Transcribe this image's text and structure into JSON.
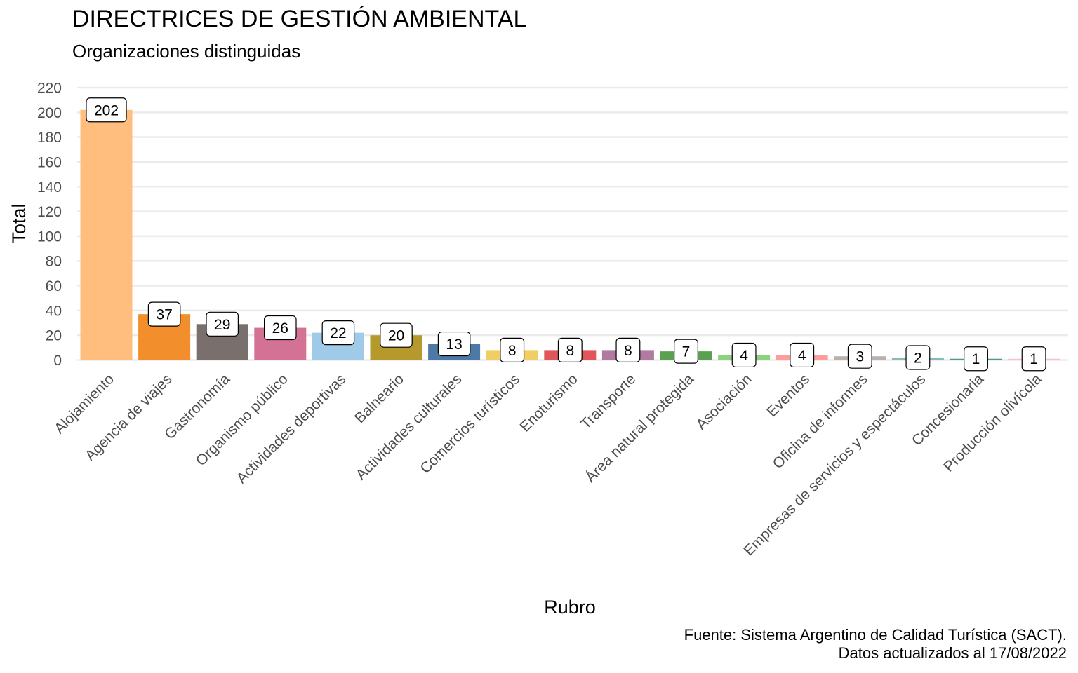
{
  "chart_data": {
    "type": "bar",
    "title": "DIRECTRICES DE GESTIÓN AMBIENTAL",
    "subtitle": "Organizaciones distinguidas",
    "xlabel": "Rubro",
    "ylabel": "Total",
    "ylim": [
      0,
      220
    ],
    "yticks": [
      0,
      20,
      40,
      60,
      80,
      100,
      120,
      140,
      160,
      180,
      200,
      220
    ],
    "grid": true,
    "legend": "none",
    "categories": [
      "Alojamiento",
      "Agencia de viajes",
      "Gastronomía",
      "Organismo público",
      "Actividades deportivas",
      "Balneario",
      "Actividades culturales",
      "Comercios turísticos",
      "Enoturismo",
      "Transporte",
      "Área natural protegida",
      "Asociación",
      "Eventos",
      "Oficina de informes",
      "Empresas de servicios y espectáculos",
      "Concesionaria",
      "Producción olivícola"
    ],
    "values": [
      202,
      37,
      29,
      26,
      22,
      20,
      13,
      8,
      8,
      8,
      7,
      4,
      4,
      3,
      2,
      1,
      1
    ],
    "colors": [
      "#FFBE7D",
      "#F28E2B",
      "#79706E",
      "#D37295",
      "#A0CBE8",
      "#B6992D",
      "#4E79A7",
      "#F1CE63",
      "#E15759",
      "#B07AA1",
      "#59A14F",
      "#8CD17D",
      "#FF9D9A",
      "#BAB0AC",
      "#86BCB6",
      "#499894",
      "#FABFD2"
    ],
    "caption": [
      "Fuente: Sistema Argentino de Calidad Turística (SACT).",
      "Datos actualizados al 17/08/2022"
    ]
  }
}
